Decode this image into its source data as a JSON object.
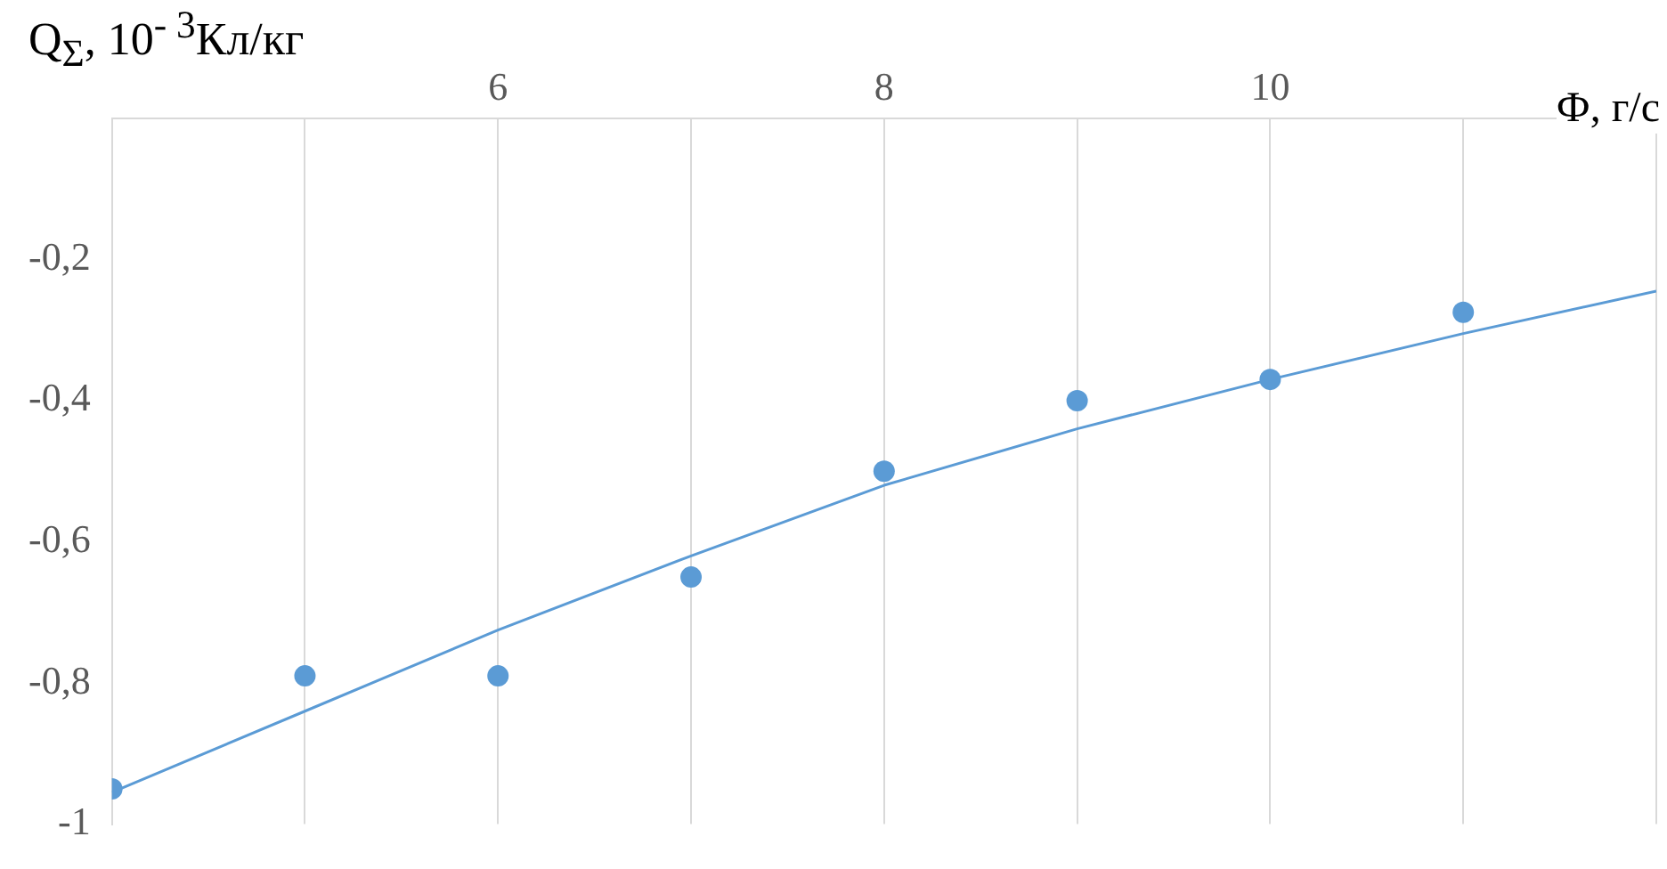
{
  "chart_data": {
    "type": "scatter",
    "xlabel": "Ф, г/с",
    "ylabel": "Q$_{Σ}$, 10$^{- 3}$Кл/кг",
    "xlim": [
      4,
      12
    ],
    "xticks": [
      {
        "value": 4,
        "label": null
      },
      {
        "value": 5,
        "label": null
      },
      6,
      {
        "value": 7,
        "label": null
      },
      8,
      {
        "value": 9,
        "label": null
      },
      10,
      {
        "value": 11,
        "label": null
      },
      {
        "value": 12,
        "label": null
      }
    ],
    "ylim": [
      -1,
      0
    ],
    "yticks": [
      {
        "value": -1,
        "label": "-1"
      },
      {
        "value": -0.8,
        "label": "-0,8"
      },
      {
        "value": -0.6,
        "label": "-0,6"
      },
      {
        "value": -0.4,
        "label": "-0,4"
      },
      {
        "value": -0.2,
        "label": "-0,2"
      }
    ],
    "grid": "x",
    "series": [
      {
        "type": "scatter",
        "marker": "circle",
        "color": "#5b9bd5",
        "x": [
          4,
          5,
          6,
          7,
          8,
          9,
          10,
          11
        ],
        "values": [
          -0.95,
          -0.79,
          -0.79,
          -0.65,
          -0.5,
          -0.4,
          -0.37,
          -0.275
        ]
      },
      {
        "type": "line",
        "marker": "none",
        "color": "#5b9bd5",
        "x": [
          4,
          5,
          6,
          7,
          8,
          9,
          10,
          11,
          12
        ],
        "values": [
          -0.955,
          -0.84,
          -0.725,
          -0.62,
          -0.52,
          -0.44,
          -0.37,
          -0.305,
          -0.245
        ]
      }
    ]
  }
}
